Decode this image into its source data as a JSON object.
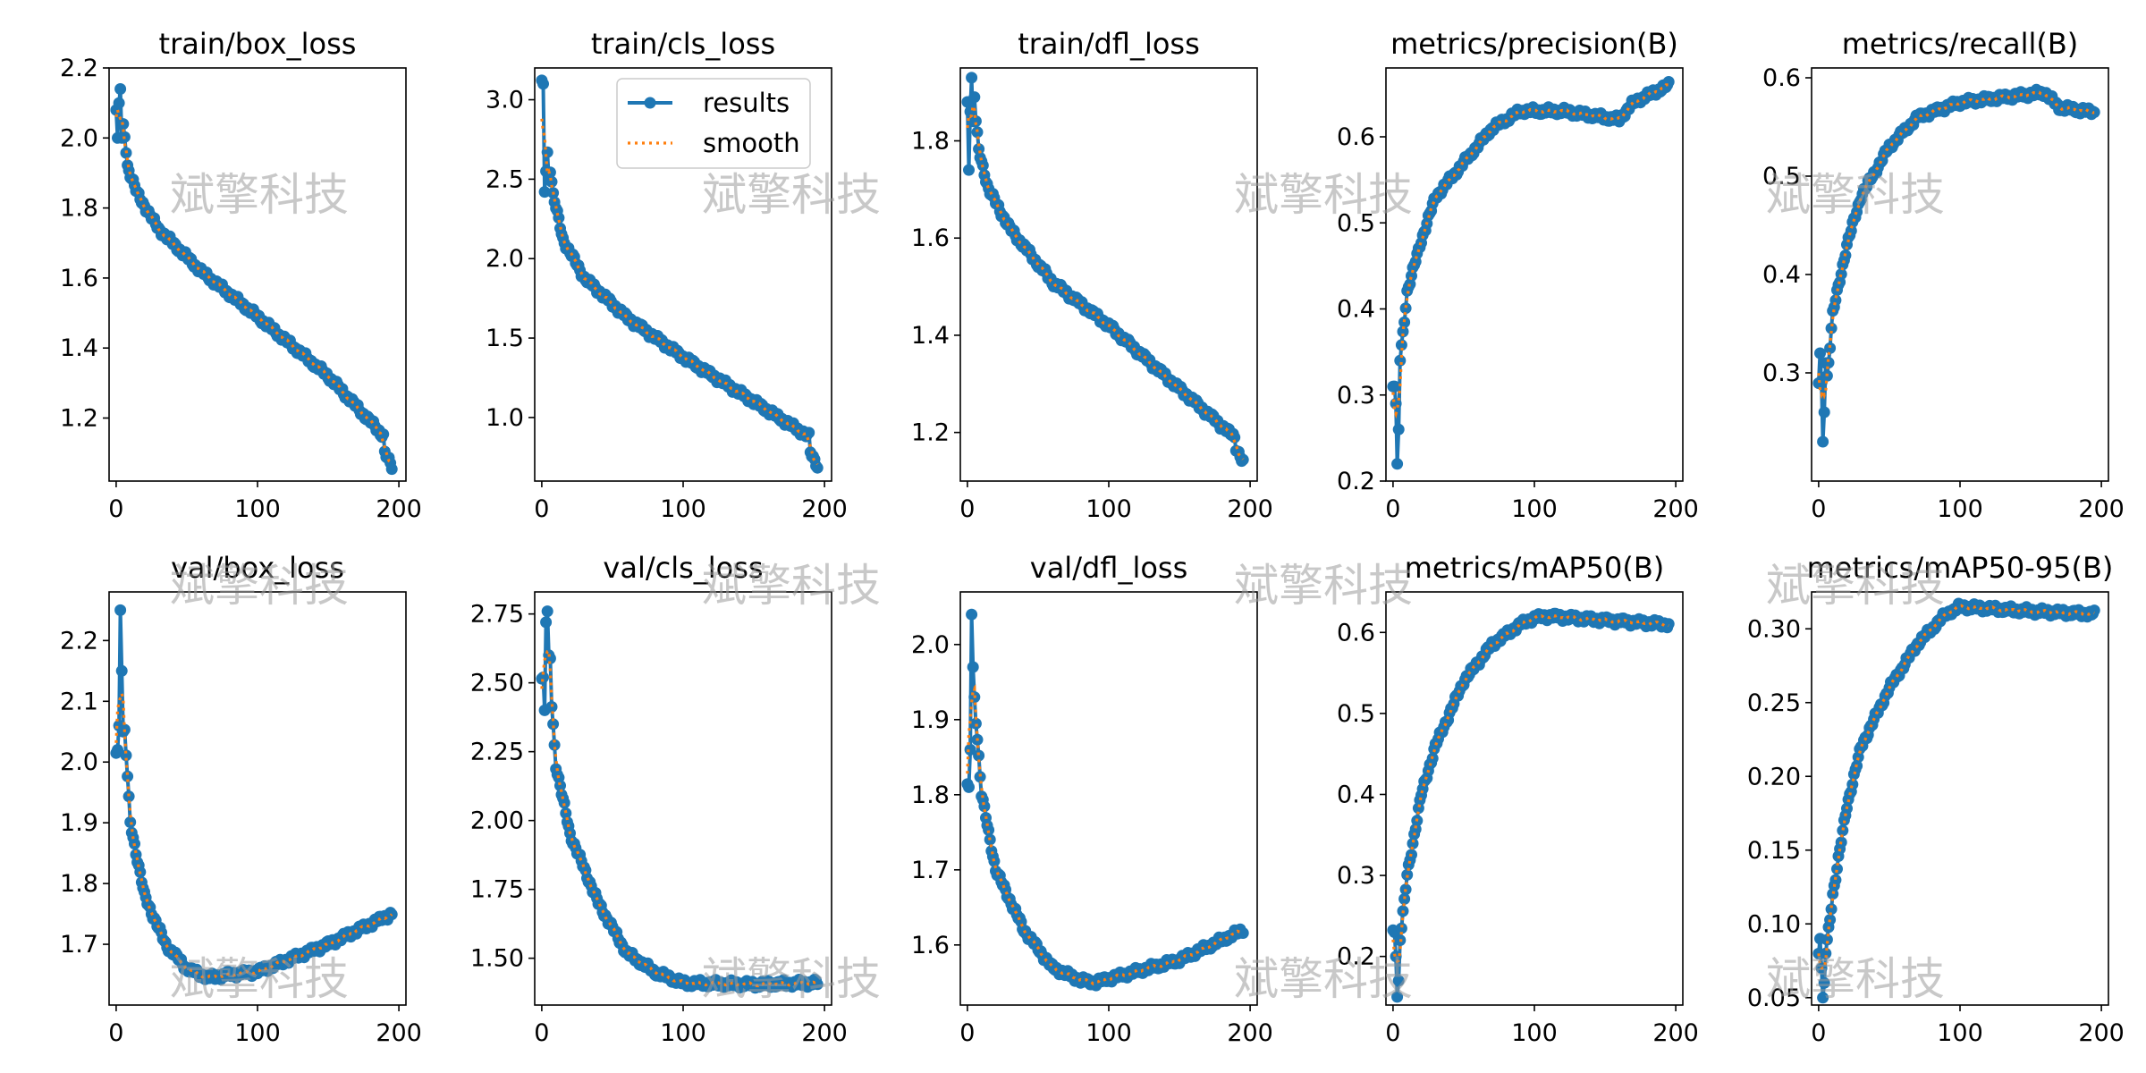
{
  "watermark": "斌擎科技",
  "colors": {
    "results": "#1f77b4",
    "smooth": "#ff7f0e",
    "axis": "#000000",
    "watermark": "#9a9a9a"
  },
  "legend": {
    "results_label": "results",
    "smooth_label": "smooth",
    "placement": "upper-right of train/cls_loss"
  },
  "chart_data": [
    {
      "type": "line",
      "title": "train/box_loss",
      "xlim": [
        -5,
        205
      ],
      "ylim": [
        1.02,
        2.2
      ],
      "xticks": [
        "0",
        "100",
        "200"
      ],
      "yticks": [
        1.2,
        1.4,
        1.6,
        1.8,
        2.0,
        2.2
      ],
      "ytick_labels": [
        "1.2",
        "1.4",
        "1.6",
        "1.8",
        "2.0",
        "2.2"
      ],
      "curve": {
        "kind": "decay_then_linear",
        "points": [
          [
            1,
            2.08
          ],
          [
            3,
            2.14
          ],
          [
            8,
            1.92
          ],
          [
            15,
            1.84
          ],
          [
            30,
            1.74
          ],
          [
            60,
            1.62
          ],
          [
            100,
            1.49
          ],
          [
            150,
            1.32
          ],
          [
            189,
            1.15
          ],
          [
            190,
            1.1
          ],
          [
            195,
            1.06
          ]
        ]
      },
      "noise": [
        [
          0,
          2.08
        ],
        [
          1,
          2.0
        ],
        [
          2,
          2.1
        ],
        [
          3,
          2.14
        ],
        [
          4,
          2.0
        ],
        [
          5,
          2.04
        ]
      ]
    },
    {
      "type": "line",
      "title": "train/cls_loss",
      "xlim": [
        -5,
        205
      ],
      "ylim": [
        0.6,
        3.2
      ],
      "xticks": [
        "0",
        "100",
        "200"
      ],
      "yticks": [
        1.0,
        1.5,
        2.0,
        2.5,
        3.0
      ],
      "ytick_labels": [
        "1.0",
        "1.5",
        "2.0",
        "2.5",
        "3.0"
      ],
      "curve": {
        "kind": "decay_then_linear",
        "points": [
          [
            1,
            3.1
          ],
          [
            3,
            2.42
          ],
          [
            5,
            2.65
          ],
          [
            8,
            2.4
          ],
          [
            15,
            2.12
          ],
          [
            30,
            1.88
          ],
          [
            60,
            1.63
          ],
          [
            100,
            1.38
          ],
          [
            150,
            1.1
          ],
          [
            189,
            0.88
          ],
          [
            190,
            0.78
          ],
          [
            195,
            0.7
          ]
        ]
      },
      "noise": [
        [
          1,
          3.1
        ],
        [
          2,
          2.42
        ],
        [
          3,
          2.55
        ],
        [
          4,
          2.67
        ],
        [
          5,
          2.5
        ]
      ]
    },
    {
      "type": "line",
      "title": "train/dfl_loss",
      "xlim": [
        -5,
        205
      ],
      "ylim": [
        1.1,
        1.95
      ],
      "xticks": [
        "0",
        "100",
        "200"
      ],
      "yticks": [
        1.2,
        1.4,
        1.6,
        1.8
      ],
      "ytick_labels": [
        "1.2",
        "1.4",
        "1.6",
        "1.8"
      ],
      "curve": {
        "kind": "decay_then_linear",
        "points": [
          [
            1,
            1.88
          ],
          [
            3,
            1.93
          ],
          [
            8,
            1.78
          ],
          [
            15,
            1.7
          ],
          [
            30,
            1.62
          ],
          [
            60,
            1.51
          ],
          [
            100,
            1.42
          ],
          [
            150,
            1.29
          ],
          [
            189,
            1.19
          ],
          [
            190,
            1.17
          ],
          [
            195,
            1.14
          ]
        ]
      },
      "noise": [
        [
          0,
          1.88
        ],
        [
          1,
          1.74
        ],
        [
          2,
          1.86
        ],
        [
          3,
          1.93
        ],
        [
          4,
          1.84
        ],
        [
          5,
          1.89
        ]
      ]
    },
    {
      "type": "line",
      "title": "metrics/precision(B)",
      "xlim": [
        -5,
        205
      ],
      "ylim": [
        0.2,
        0.68
      ],
      "xticks": [
        "0",
        "100",
        "200"
      ],
      "yticks": [
        0.2,
        0.3,
        0.4,
        0.5,
        0.6
      ],
      "ytick_labels": [
        "0.2",
        "0.3",
        "0.4",
        "0.5",
        "0.6"
      ],
      "curve": {
        "kind": "rise",
        "points": [
          [
            1,
            0.31
          ],
          [
            3,
            0.22
          ],
          [
            5,
            0.34
          ],
          [
            10,
            0.42
          ],
          [
            20,
            0.48
          ],
          [
            30,
            0.53
          ],
          [
            50,
            0.57
          ],
          [
            70,
            0.61
          ],
          [
            90,
            0.63
          ],
          [
            120,
            0.63
          ],
          [
            140,
            0.625
          ],
          [
            160,
            0.62
          ],
          [
            170,
            0.64
          ],
          [
            195,
            0.66
          ]
        ]
      },
      "noise": [
        [
          1,
          0.31
        ],
        [
          2,
          0.29
        ],
        [
          3,
          0.22
        ],
        [
          4,
          0.26
        ],
        [
          5,
          0.34
        ]
      ]
    },
    {
      "type": "line",
      "title": "metrics/recall(B)",
      "xlim": [
        -5,
        205
      ],
      "ylim": [
        0.19,
        0.61
      ],
      "xticks": [
        "0",
        "100",
        "200"
      ],
      "yticks": [
        0.3,
        0.4,
        0.5,
        0.6
      ],
      "ytick_labels": [
        "0.3",
        "0.4",
        "0.5",
        "0.6"
      ],
      "curve": {
        "kind": "rise",
        "points": [
          [
            1,
            0.29
          ],
          [
            3,
            0.23
          ],
          [
            5,
            0.28
          ],
          [
            10,
            0.36
          ],
          [
            20,
            0.43
          ],
          [
            30,
            0.48
          ],
          [
            50,
            0.53
          ],
          [
            70,
            0.56
          ],
          [
            100,
            0.575
          ],
          [
            130,
            0.58
          ],
          [
            160,
            0.585
          ],
          [
            170,
            0.57
          ],
          [
            195,
            0.565
          ]
        ]
      },
      "noise": [
        [
          1,
          0.32
        ],
        [
          2,
          0.29
        ],
        [
          3,
          0.23
        ],
        [
          4,
          0.26
        ],
        [
          5,
          0.31
        ]
      ]
    },
    {
      "type": "line",
      "title": "val/box_loss",
      "xlim": [
        -5,
        205
      ],
      "ylim": [
        1.6,
        2.28
      ],
      "xticks": [
        "0",
        "100",
        "200"
      ],
      "yticks": [
        1.7,
        1.8,
        1.9,
        2.0,
        2.1,
        2.2
      ],
      "ytick_labels": [
        "1.7",
        "1.8",
        "1.9",
        "2.0",
        "2.1",
        "2.2"
      ],
      "curve": {
        "kind": "valley",
        "points": [
          [
            1,
            2.02
          ],
          [
            3,
            2.25
          ],
          [
            4,
            2.15
          ],
          [
            6,
            2.05
          ],
          [
            10,
            1.9
          ],
          [
            20,
            1.78
          ],
          [
            35,
            1.7
          ],
          [
            50,
            1.66
          ],
          [
            65,
            1.645
          ],
          [
            80,
            1.65
          ],
          [
            100,
            1.655
          ],
          [
            150,
            1.7
          ],
          [
            195,
            1.75
          ]
        ]
      },
      "noise": [
        [
          1,
          2.02
        ],
        [
          2,
          2.06
        ],
        [
          3,
          2.25
        ],
        [
          4,
          2.15
        ],
        [
          5,
          2.05
        ]
      ]
    },
    {
      "type": "line",
      "title": "val/cls_loss",
      "xlim": [
        -5,
        205
      ],
      "ylim": [
        1.33,
        2.83
      ],
      "xticks": [
        "0",
        "100",
        "200"
      ],
      "yticks": [
        1.5,
        1.75,
        2.0,
        2.25,
        2.5,
        2.75
      ],
      "ytick_labels": [
        "1.50",
        "1.75",
        "2.00",
        "2.25",
        "2.50",
        "2.75"
      ],
      "curve": {
        "kind": "decay",
        "points": [
          [
            1,
            2.52
          ],
          [
            3,
            2.4
          ],
          [
            4,
            2.73
          ],
          [
            5,
            2.76
          ],
          [
            7,
            2.42
          ],
          [
            10,
            2.2
          ],
          [
            20,
            1.95
          ],
          [
            40,
            1.7
          ],
          [
            60,
            1.52
          ],
          [
            80,
            1.45
          ],
          [
            100,
            1.41
          ],
          [
            150,
            1.405
          ],
          [
            195,
            1.41
          ]
        ]
      },
      "noise": [
        [
          1,
          2.52
        ],
        [
          2,
          2.4
        ],
        [
          3,
          2.72
        ],
        [
          4,
          2.76
        ],
        [
          5,
          2.6
        ]
      ]
    },
    {
      "type": "line",
      "title": "val/dfl_loss",
      "xlim": [
        -5,
        205
      ],
      "ylim": [
        1.52,
        2.07
      ],
      "xticks": [
        "0",
        "100",
        "200"
      ],
      "yticks": [
        1.6,
        1.7,
        1.8,
        1.9,
        2.0
      ],
      "ytick_labels": [
        "1.6",
        "1.7",
        "1.8",
        "1.9",
        "2.0"
      ],
      "curve": {
        "kind": "valley",
        "points": [
          [
            1,
            1.81
          ],
          [
            3,
            2.04
          ],
          [
            4,
            1.97
          ],
          [
            6,
            1.9
          ],
          [
            10,
            1.8
          ],
          [
            20,
            1.7
          ],
          [
            40,
            1.62
          ],
          [
            60,
            1.57
          ],
          [
            80,
            1.553
          ],
          [
            90,
            1.55
          ],
          [
            100,
            1.555
          ],
          [
            150,
            1.58
          ],
          [
            195,
            1.62
          ]
        ]
      },
      "noise": [
        [
          1,
          1.81
        ],
        [
          2,
          1.86
        ],
        [
          3,
          2.04
        ],
        [
          4,
          1.97
        ],
        [
          5,
          1.93
        ]
      ]
    },
    {
      "type": "line",
      "title": "metrics/mAP50(B)",
      "xlim": [
        -5,
        205
      ],
      "ylim": [
        0.14,
        0.65
      ],
      "xticks": [
        "0",
        "100",
        "200"
      ],
      "yticks": [
        0.2,
        0.3,
        0.4,
        0.5,
        0.6
      ],
      "ytick_labels": [
        "0.2",
        "0.3",
        "0.4",
        "0.5",
        "0.6"
      ],
      "curve": {
        "kind": "rise",
        "points": [
          [
            1,
            0.23
          ],
          [
            3,
            0.15
          ],
          [
            5,
            0.22
          ],
          [
            10,
            0.3
          ],
          [
            20,
            0.4
          ],
          [
            30,
            0.46
          ],
          [
            50,
            0.54
          ],
          [
            70,
            0.585
          ],
          [
            90,
            0.61
          ],
          [
            100,
            0.618
          ],
          [
            110,
            0.62
          ],
          [
            150,
            0.615
          ],
          [
            195,
            0.61
          ]
        ]
      },
      "noise": [
        [
          1,
          0.23
        ],
        [
          2,
          0.2
        ],
        [
          3,
          0.15
        ],
        [
          4,
          0.17
        ],
        [
          5,
          0.22
        ]
      ]
    },
    {
      "type": "line",
      "title": "metrics/mAP50-95(B)",
      "xlim": [
        -5,
        205
      ],
      "ylim": [
        0.045,
        0.325
      ],
      "xticks": [
        "0",
        "100",
        "200"
      ],
      "yticks": [
        0.05,
        0.1,
        0.15,
        0.2,
        0.25,
        0.3
      ],
      "ytick_labels": [
        "0.05",
        "0.10",
        "0.15",
        "0.20",
        "0.25",
        "0.30"
      ],
      "curve": {
        "kind": "rise",
        "points": [
          [
            1,
            0.08
          ],
          [
            3,
            0.05
          ],
          [
            5,
            0.08
          ],
          [
            10,
            0.12
          ],
          [
            20,
            0.18
          ],
          [
            30,
            0.22
          ],
          [
            50,
            0.26
          ],
          [
            70,
            0.29
          ],
          [
            90,
            0.31
          ],
          [
            100,
            0.315
          ],
          [
            150,
            0.312
          ],
          [
            195,
            0.31
          ]
        ]
      },
      "noise": [
        [
          1,
          0.09
        ],
        [
          2,
          0.07
        ],
        [
          3,
          0.05
        ],
        [
          4,
          0.06
        ],
        [
          5,
          0.08
        ]
      ]
    }
  ]
}
